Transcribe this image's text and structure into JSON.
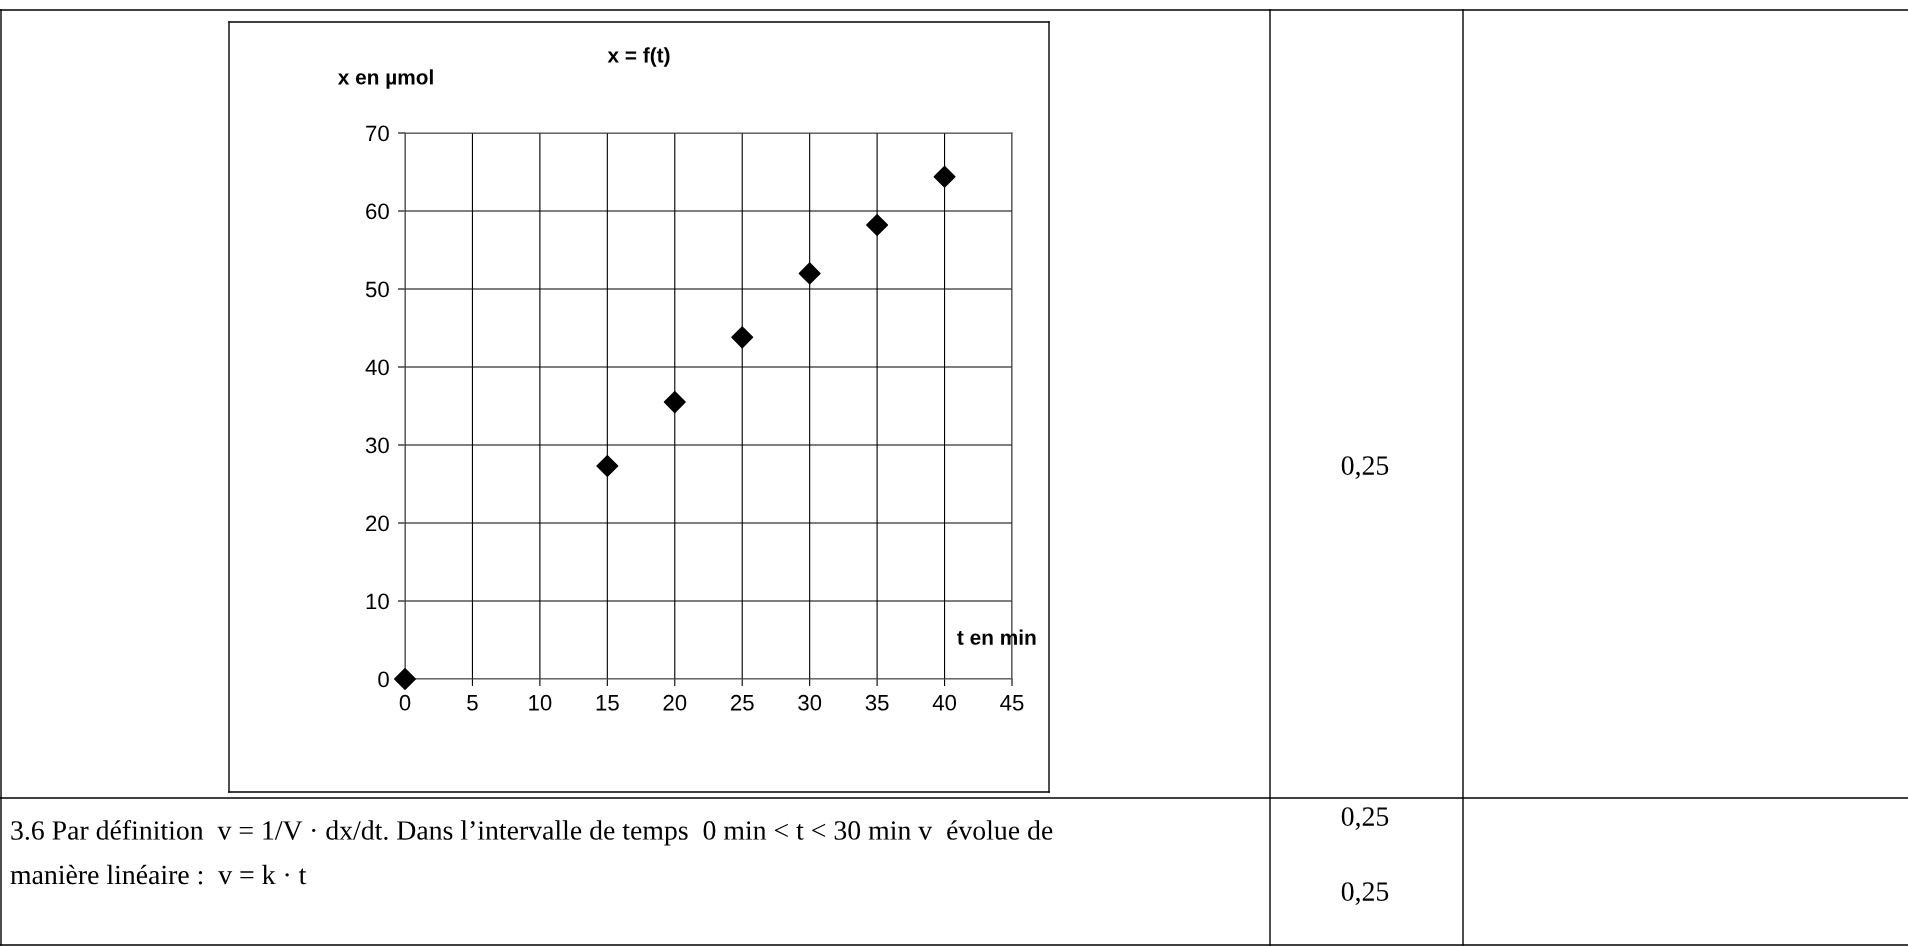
{
  "chart_data": {
    "type": "scatter",
    "title": "x = f(t)",
    "xlabel": "t en min",
    "ylabel": "x en µmol",
    "x": [
      0,
      15,
      20,
      25,
      30,
      35,
      40
    ],
    "series": [
      {
        "color": "#000000",
        "values": [
          0,
          27.3,
          35.5,
          43.8,
          52.0,
          58.2,
          64.4
        ]
      }
    ],
    "xlim": [
      0,
      45
    ],
    "xticks": [
      0,
      5,
      10,
      15,
      20,
      25,
      30,
      35,
      40,
      45
    ],
    "ylim": [
      0,
      70
    ],
    "yticks": [
      0,
      10,
      20,
      30,
      40,
      50,
      60,
      70
    ],
    "grid": true,
    "marker": "diamond",
    "legend": false,
    "annotations": [
      "0,25",
      "0,25",
      "0,25",
      "3.6 Par définition  v = 1/V · dx/dt. Dans l’intervalle de temps  0 min < t < 30 min v  évolue de\nmanière linéaire :  v = k · t"
    ]
  }
}
